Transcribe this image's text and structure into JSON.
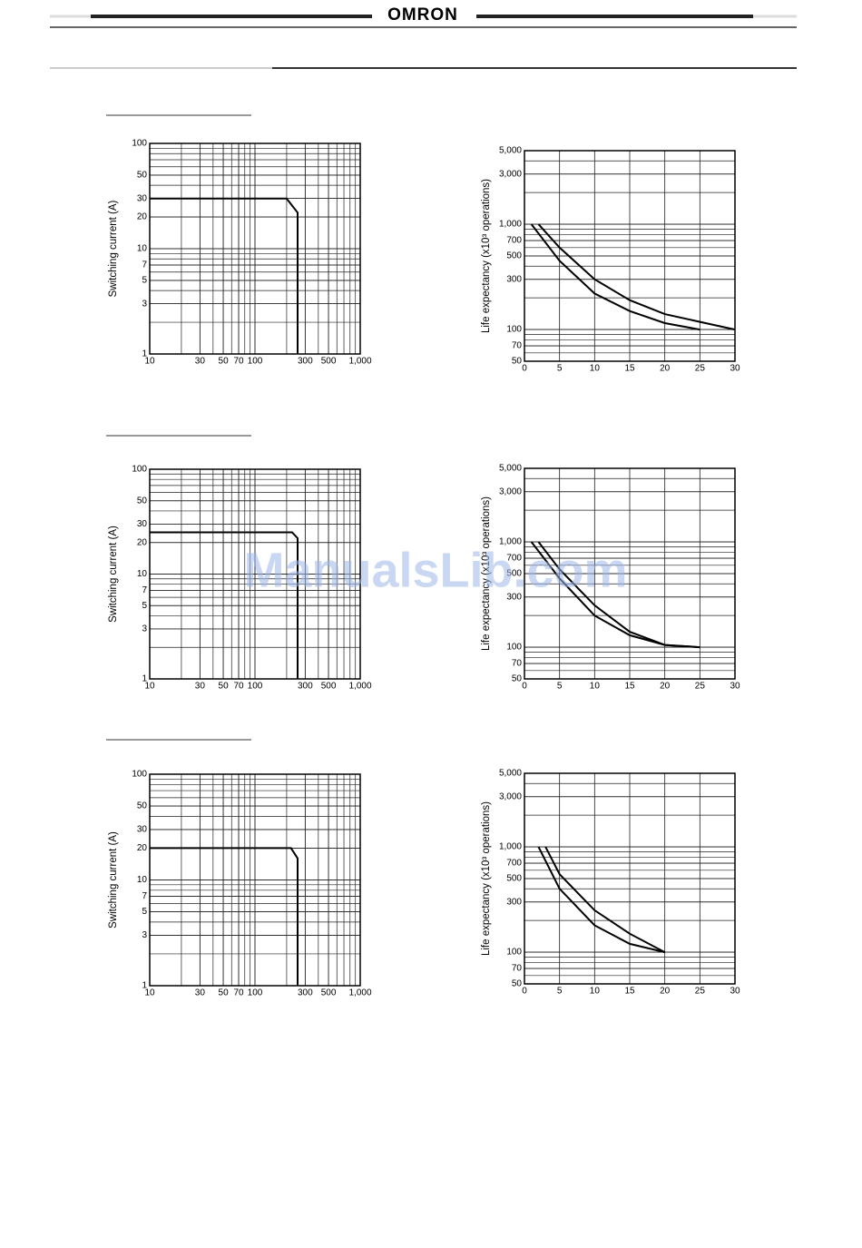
{
  "header": {
    "brand": "OMRON"
  },
  "watermark": "ManualsLib.com",
  "chart_data": [
    {
      "type": "line",
      "ylabel": "Switching current (A)",
      "xlog": true,
      "ylog": true,
      "xlim": [
        10,
        1000
      ],
      "ylim": [
        1,
        100
      ],
      "xticks": [
        10,
        30,
        50,
        70,
        100,
        300,
        500,
        {
          "value": 1000,
          "label": "1,000"
        }
      ],
      "yticks": [
        1,
        3,
        5,
        7,
        10,
        20,
        30,
        50,
        100
      ],
      "grid": true,
      "series": [
        {
          "color": "#000000",
          "x": [
            10,
            200,
            254,
            254
          ],
          "values": [
            30,
            30,
            22,
            1
          ]
        }
      ]
    },
    {
      "type": "line",
      "ylabel": "Life expectancy (x10³ operations)",
      "ylog": true,
      "xlim": [
        0,
        30
      ],
      "ylim": [
        50,
        5000
      ],
      "xticks": [
        0,
        5,
        10,
        15,
        20,
        25,
        30
      ],
      "yticks": [
        50,
        70,
        100,
        300,
        500,
        700,
        {
          "value": 1000,
          "label": "1,000"
        },
        {
          "value": 3000,
          "label": "3,000"
        },
        {
          "value": 5000,
          "label": "5,000"
        }
      ],
      "grid": true,
      "series": [
        {
          "color": "#000000",
          "x": [
            2,
            5,
            10,
            15,
            20,
            30
          ],
          "values": [
            1000,
            600,
            300,
            190,
            140,
            100
          ]
        },
        {
          "color": "#000000",
          "x": [
            1,
            5,
            10,
            15,
            20,
            25
          ],
          "values": [
            1000,
            450,
            220,
            150,
            115,
            100
          ]
        }
      ]
    },
    {
      "type": "line",
      "ylabel": "Switching current (A)",
      "xlog": true,
      "ylog": true,
      "xlim": [
        10,
        1000
      ],
      "ylim": [
        1,
        100
      ],
      "xticks": [
        10,
        30,
        50,
        70,
        100,
        300,
        500,
        {
          "value": 1000,
          "label": "1,000"
        }
      ],
      "yticks": [
        1,
        3,
        5,
        7,
        10,
        20,
        30,
        50,
        100
      ],
      "grid": true,
      "series": [
        {
          "color": "#000000",
          "x": [
            10,
            225,
            254,
            254
          ],
          "values": [
            25,
            25,
            22,
            1
          ]
        }
      ]
    },
    {
      "type": "line",
      "ylabel": "Life expectancy (x10³ operations)",
      "ylog": true,
      "xlim": [
        0,
        30
      ],
      "ylim": [
        50,
        5000
      ],
      "xticks": [
        0,
        5,
        10,
        15,
        20,
        25,
        30
      ],
      "yticks": [
        50,
        70,
        100,
        300,
        500,
        700,
        {
          "value": 1000,
          "label": "1,000"
        },
        {
          "value": 3000,
          "label": "3,000"
        },
        {
          "value": 5000,
          "label": "5,000"
        }
      ],
      "grid": true,
      "series": [
        {
          "color": "#000000",
          "x": [
            2,
            5,
            10,
            15,
            20,
            25
          ],
          "values": [
            1000,
            550,
            250,
            140,
            105,
            100
          ]
        },
        {
          "color": "#000000",
          "x": [
            1,
            5,
            10,
            15,
            20,
            25
          ],
          "values": [
            1000,
            450,
            200,
            130,
            105,
            100
          ]
        }
      ]
    },
    {
      "type": "line",
      "ylabel": "Switching current (A)",
      "xlog": true,
      "ylog": true,
      "xlim": [
        10,
        1000
      ],
      "ylim": [
        1,
        100
      ],
      "xticks": [
        10,
        30,
        50,
        70,
        100,
        300,
        500,
        {
          "value": 1000,
          "label": "1,000"
        }
      ],
      "yticks": [
        1,
        3,
        5,
        7,
        10,
        20,
        30,
        50,
        100
      ],
      "grid": true,
      "series": [
        {
          "color": "#000000",
          "x": [
            10,
            220,
            254,
            254
          ],
          "values": [
            20,
            20,
            16,
            1
          ]
        }
      ]
    },
    {
      "type": "line",
      "ylabel": "Life expectancy (x10³ operations)",
      "ylog": true,
      "xlim": [
        0,
        30
      ],
      "ylim": [
        50,
        5000
      ],
      "xticks": [
        0,
        5,
        10,
        15,
        20,
        25,
        30
      ],
      "yticks": [
        50,
        70,
        100,
        300,
        500,
        700,
        {
          "value": 1000,
          "label": "1,000"
        },
        {
          "value": 3000,
          "label": "3,000"
        },
        {
          "value": 5000,
          "label": "5,000"
        }
      ],
      "grid": true,
      "series": [
        {
          "color": "#000000",
          "x": [
            3,
            5,
            10,
            15,
            20
          ],
          "values": [
            1000,
            550,
            250,
            150,
            100
          ]
        },
        {
          "color": "#000000",
          "x": [
            2,
            5,
            10,
            15,
            20
          ],
          "values": [
            1000,
            400,
            180,
            120,
            100
          ]
        }
      ]
    }
  ]
}
